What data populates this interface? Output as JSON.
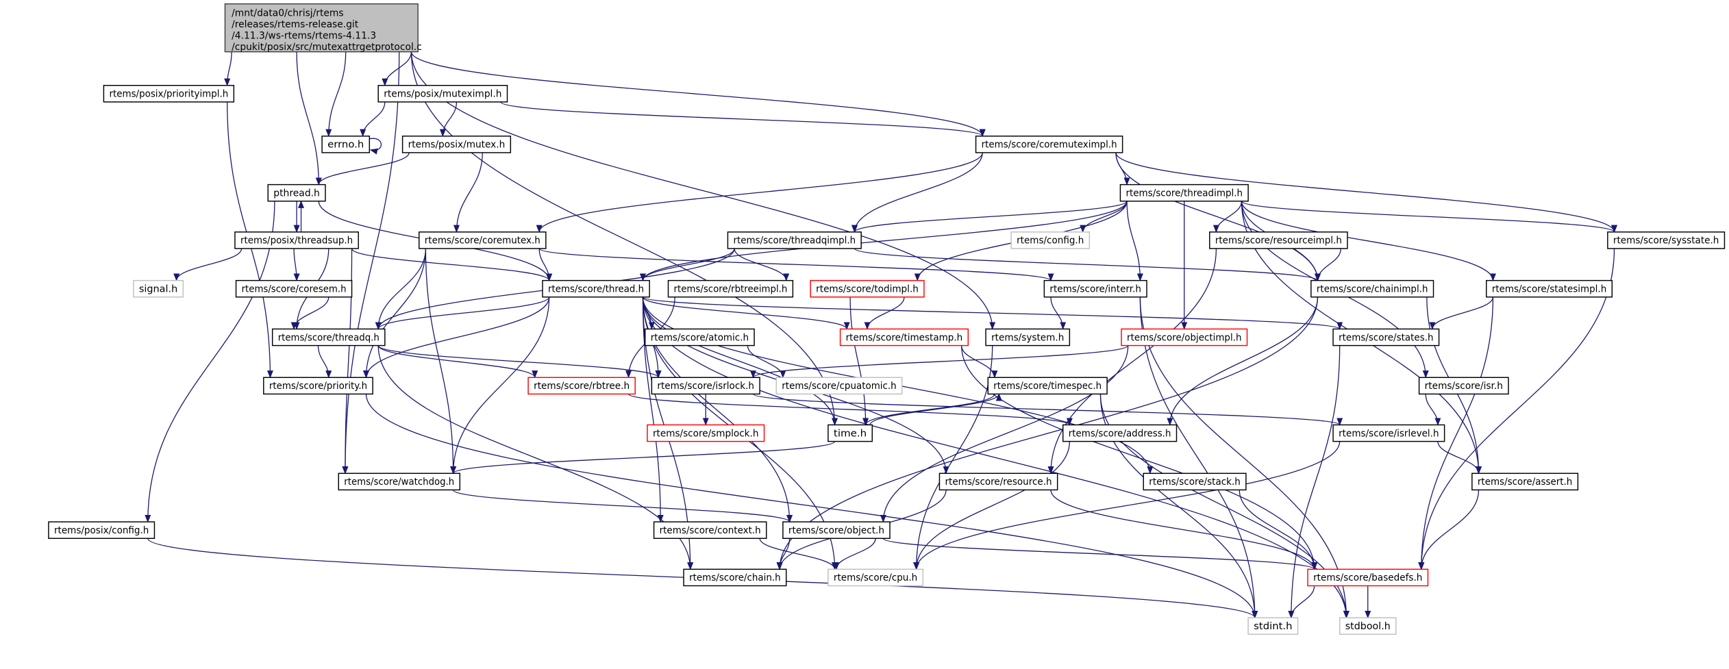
{
  "graph": {
    "edge_color": "#191970",
    "main_fill": "#bfbfbf",
    "missing_border_color": "#ff0000",
    "external_border_color": "#bfbfbf",
    "main_node": {
      "id": "main",
      "lines": [
        "/mnt/data0/chrisj/rtems",
        "/releases/rtems-release.git",
        "/4.11.3/ws-rtems/rtems-4.11.3",
        "/cpukit/posix/src/mutexattrgetprotocol.c"
      ]
    },
    "nodes": [
      {
        "id": "priorityimpl",
        "label": "rtems/posix/priorityimpl.h",
        "style": "normal"
      },
      {
        "id": "muteximpl",
        "label": "rtems/posix/muteximpl.h",
        "style": "normal"
      },
      {
        "id": "errno",
        "label": "errno.h",
        "style": "normal"
      },
      {
        "id": "mutex",
        "label": "rtems/posix/mutex.h",
        "style": "normal"
      },
      {
        "id": "coremuteximpl",
        "label": "rtems/score/coremuteximpl.h",
        "style": "normal"
      },
      {
        "id": "pthread",
        "label": "pthread.h",
        "style": "normal"
      },
      {
        "id": "threadimpl",
        "label": "rtems/score/threadimpl.h",
        "style": "normal"
      },
      {
        "id": "threadsup",
        "label": "rtems/posix/threadsup.h",
        "style": "normal"
      },
      {
        "id": "coremutex",
        "label": "rtems/score/coremutex.h",
        "style": "normal"
      },
      {
        "id": "threadqimpl",
        "label": "rtems/score/threadqimpl.h",
        "style": "normal"
      },
      {
        "id": "config",
        "label": "rtems/config.h",
        "style": "gray"
      },
      {
        "id": "resourceimpl",
        "label": "rtems/score/resourceimpl.h",
        "style": "normal"
      },
      {
        "id": "sysstate",
        "label": "rtems/score/sysstate.h",
        "style": "normal"
      },
      {
        "id": "signal",
        "label": "signal.h",
        "style": "gray"
      },
      {
        "id": "coresem",
        "label": "rtems/score/coresem.h",
        "style": "normal"
      },
      {
        "id": "thread",
        "label": "rtems/score/thread.h",
        "style": "normal"
      },
      {
        "id": "rbtreeimpl",
        "label": "rtems/score/rbtreeimpl.h",
        "style": "normal"
      },
      {
        "id": "todimpl",
        "label": "rtems/score/todimpl.h",
        "style": "red"
      },
      {
        "id": "interr",
        "label": "rtems/score/interr.h",
        "style": "normal"
      },
      {
        "id": "chainimpl",
        "label": "rtems/score/chainimpl.h",
        "style": "normal"
      },
      {
        "id": "statesimpl",
        "label": "rtems/score/statesimpl.h",
        "style": "normal"
      },
      {
        "id": "threadq",
        "label": "rtems/score/threadq.h",
        "style": "normal"
      },
      {
        "id": "atomic",
        "label": "rtems/score/atomic.h",
        "style": "normal"
      },
      {
        "id": "timestamp",
        "label": "rtems/score/timestamp.h",
        "style": "red"
      },
      {
        "id": "system",
        "label": "rtems/system.h",
        "style": "normal"
      },
      {
        "id": "objectimpl",
        "label": "rtems/score/objectimpl.h",
        "style": "red"
      },
      {
        "id": "states",
        "label": "rtems/score/states.h",
        "style": "normal"
      },
      {
        "id": "priority",
        "label": "rtems/score/priority.h",
        "style": "normal"
      },
      {
        "id": "rbtree",
        "label": "rtems/score/rbtree.h",
        "style": "red"
      },
      {
        "id": "isrlock",
        "label": "rtems/score/isrlock.h",
        "style": "normal"
      },
      {
        "id": "cpuatomic",
        "label": "rtems/score/cpuatomic.h",
        "style": "gray"
      },
      {
        "id": "timespec",
        "label": "rtems/score/timespec.h",
        "style": "normal"
      },
      {
        "id": "isr",
        "label": "rtems/score/isr.h",
        "style": "normal"
      },
      {
        "id": "smplock",
        "label": "rtems/score/smplock.h",
        "style": "red"
      },
      {
        "id": "time",
        "label": "time.h",
        "style": "normal"
      },
      {
        "id": "address",
        "label": "rtems/score/address.h",
        "style": "normal"
      },
      {
        "id": "isrlevel",
        "label": "rtems/score/isrlevel.h",
        "style": "normal"
      },
      {
        "id": "watchdog",
        "label": "rtems/score/watchdog.h",
        "style": "normal"
      },
      {
        "id": "resource",
        "label": "rtems/score/resource.h",
        "style": "normal"
      },
      {
        "id": "stack",
        "label": "rtems/score/stack.h",
        "style": "normal"
      },
      {
        "id": "assert",
        "label": "rtems/score/assert.h",
        "style": "normal"
      },
      {
        "id": "posixconfig",
        "label": "rtems/posix/config.h",
        "style": "normal"
      },
      {
        "id": "context",
        "label": "rtems/score/context.h",
        "style": "normal"
      },
      {
        "id": "object",
        "label": "rtems/score/object.h",
        "style": "normal"
      },
      {
        "id": "chain",
        "label": "rtems/score/chain.h",
        "style": "normal"
      },
      {
        "id": "cpu",
        "label": "rtems/score/cpu.h",
        "style": "gray"
      },
      {
        "id": "basedefs",
        "label": "rtems/score/basedefs.h",
        "style": "red"
      },
      {
        "id": "stdint",
        "label": "stdint.h",
        "style": "gray"
      },
      {
        "id": "stdbool",
        "label": "stdbool.h",
        "style": "gray"
      }
    ],
    "edges": [
      [
        "main",
        "priorityimpl"
      ],
      [
        "main",
        "errno"
      ],
      [
        "main",
        "pthread"
      ],
      [
        "main",
        "muteximpl"
      ],
      [
        "main",
        "coremuteximpl"
      ],
      [
        "main",
        "system"
      ],
      [
        "main",
        "time"
      ],
      [
        "main",
        "watchdog"
      ],
      [
        "priorityimpl",
        "priority"
      ],
      [
        "muteximpl",
        "errno"
      ],
      [
        "muteximpl",
        "mutex"
      ],
      [
        "muteximpl",
        "coremuteximpl"
      ],
      [
        "errno",
        "errno"
      ],
      [
        "mutex",
        "pthread"
      ],
      [
        "mutex",
        "coremutex"
      ],
      [
        "pthread",
        "threadsup"
      ],
      [
        "pthread",
        "thread"
      ],
      [
        "pthread",
        "posixconfig"
      ],
      [
        "threadsup",
        "pthread"
      ],
      [
        "threadsup",
        "signal"
      ],
      [
        "threadsup",
        "coresem"
      ],
      [
        "threadsup",
        "threadq"
      ],
      [
        "threadsup",
        "thread"
      ],
      [
        "threadsup",
        "watchdog"
      ],
      [
        "coremutex",
        "thread"
      ],
      [
        "coremutex",
        "threadq"
      ],
      [
        "coremutex",
        "priority"
      ],
      [
        "coremutex",
        "watchdog"
      ],
      [
        "coremutex",
        "interr"
      ],
      [
        "coremuteximpl",
        "coremutex"
      ],
      [
        "coremuteximpl",
        "threadqimpl"
      ],
      [
        "coremuteximpl",
        "threadimpl"
      ],
      [
        "coremuteximpl",
        "chainimpl"
      ],
      [
        "coremuteximpl",
        "sysstate"
      ],
      [
        "threadimpl",
        "threadqimpl"
      ],
      [
        "threadimpl",
        "config"
      ],
      [
        "threadimpl",
        "resourceimpl"
      ],
      [
        "threadimpl",
        "todimpl"
      ],
      [
        "threadimpl",
        "thread"
      ],
      [
        "threadimpl",
        "interr"
      ],
      [
        "threadimpl",
        "objectimpl"
      ],
      [
        "threadimpl",
        "chainimpl"
      ],
      [
        "threadimpl",
        "sysstate"
      ],
      [
        "threadimpl",
        "statesimpl"
      ],
      [
        "threadimpl",
        "isr"
      ],
      [
        "threadimpl",
        "assert"
      ],
      [
        "threadqimpl",
        "thread"
      ],
      [
        "threadqimpl",
        "threadq"
      ],
      [
        "threadqimpl",
        "rbtreeimpl"
      ],
      [
        "threadqimpl",
        "chainimpl"
      ],
      [
        "coresem",
        "threadq"
      ],
      [
        "thread",
        "threadq"
      ],
      [
        "thread",
        "priority"
      ],
      [
        "thread",
        "watchdog"
      ],
      [
        "thread",
        "atomic"
      ],
      [
        "thread",
        "isrlock"
      ],
      [
        "thread",
        "timestamp"
      ],
      [
        "thread",
        "states"
      ],
      [
        "thread",
        "context"
      ],
      [
        "thread",
        "object"
      ],
      [
        "thread",
        "resource"
      ],
      [
        "thread",
        "stack"
      ],
      [
        "thread",
        "chain"
      ],
      [
        "thread",
        "cpu"
      ],
      [
        "thread",
        "time"
      ],
      [
        "thread",
        "stdbool"
      ],
      [
        "threadq",
        "priority"
      ],
      [
        "threadq",
        "rbtree"
      ],
      [
        "threadq",
        "isrlock"
      ],
      [
        "threadq",
        "chain"
      ],
      [
        "rbtreeimpl",
        "rbtree"
      ],
      [
        "todimpl",
        "timestamp"
      ],
      [
        "todimpl",
        "time"
      ],
      [
        "interr",
        "system"
      ],
      [
        "interr",
        "stdint"
      ],
      [
        "interr",
        "stdbool"
      ],
      [
        "resourceimpl",
        "chainimpl"
      ],
      [
        "resourceimpl",
        "resource"
      ],
      [
        "chainimpl",
        "address"
      ],
      [
        "chainimpl",
        "assert"
      ],
      [
        "chainimpl",
        "chain"
      ],
      [
        "statesimpl",
        "states"
      ],
      [
        "statesimpl",
        "basedefs"
      ],
      [
        "sysstate",
        "basedefs"
      ],
      [
        "atomic",
        "cpuatomic"
      ],
      [
        "timestamp",
        "timespec"
      ],
      [
        "timestamp",
        "basedefs"
      ],
      [
        "system",
        "cpu"
      ],
      [
        "objectimpl",
        "isrlock"
      ],
      [
        "objectimpl",
        "object"
      ],
      [
        "states",
        "stdint"
      ],
      [
        "isrlock",
        "smplock"
      ],
      [
        "isrlock",
        "isrlevel"
      ],
      [
        "rbtree",
        "address"
      ],
      [
        "timespec",
        "time"
      ],
      [
        "timespec",
        "stdint"
      ],
      [
        "timespec",
        "stdbool"
      ],
      [
        "time",
        "timespec"
      ],
      [
        "time",
        "watchdog"
      ],
      [
        "isr",
        "isrlevel"
      ],
      [
        "isrlevel",
        "assert"
      ],
      [
        "isrlevel",
        "cpu"
      ],
      [
        "address",
        "cpu"
      ],
      [
        "watchdog",
        "object"
      ],
      [
        "resource",
        "chain"
      ],
      [
        "resource",
        "basedefs"
      ],
      [
        "stack",
        "basedefs"
      ],
      [
        "assert",
        "basedefs"
      ],
      [
        "context",
        "cpu"
      ],
      [
        "object",
        "chain"
      ],
      [
        "object",
        "cpu"
      ],
      [
        "object",
        "basedefs"
      ],
      [
        "posixconfig",
        "stdint"
      ],
      [
        "priority",
        "stdint"
      ],
      [
        "basedefs",
        "stdint"
      ],
      [
        "basedefs",
        "stdbool"
      ]
    ]
  }
}
